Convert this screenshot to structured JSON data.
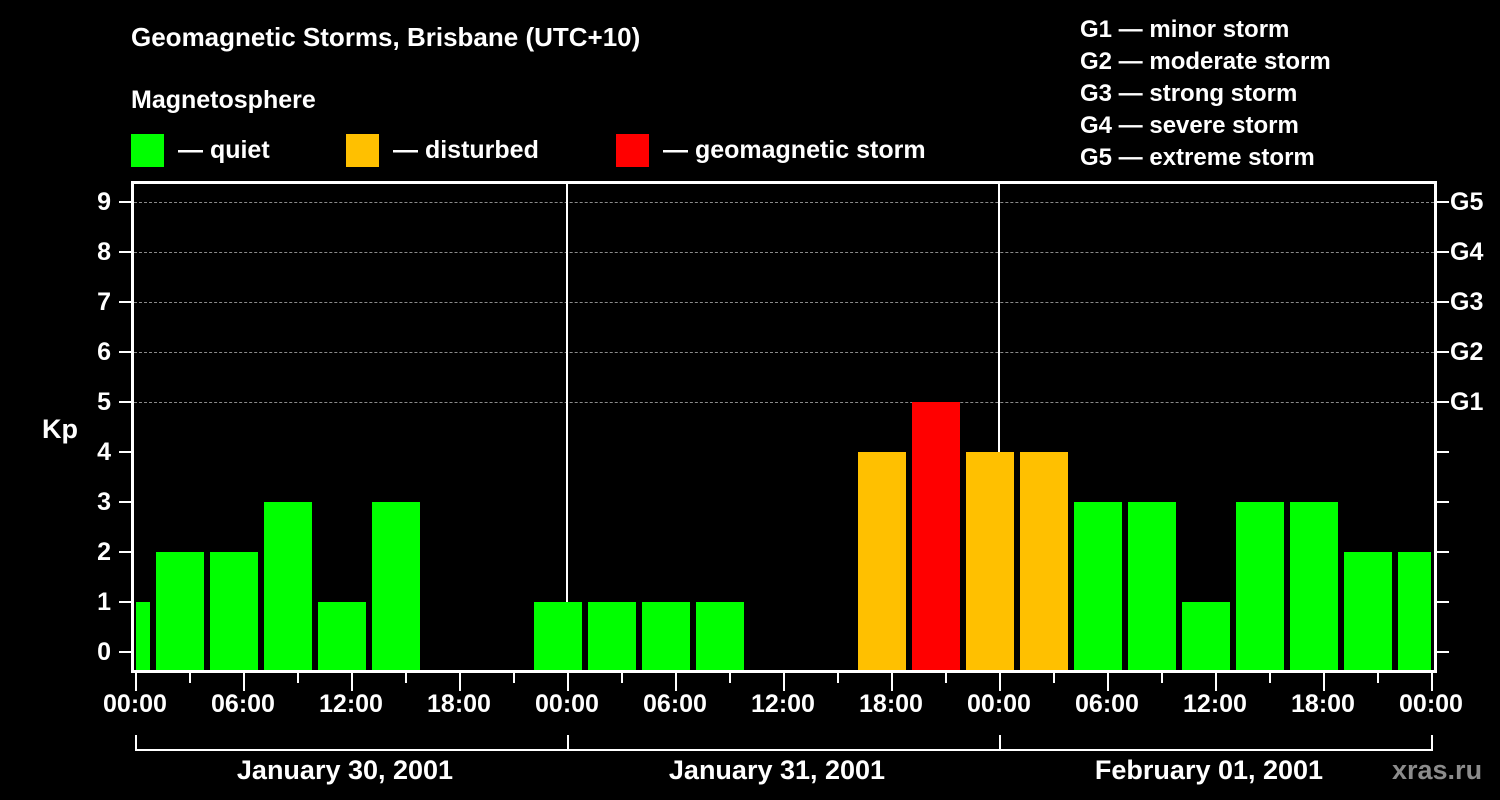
{
  "header": {
    "title": "Geomagnetic Storms, Brisbane (UTC+10)",
    "subtitle": "Magnetosphere"
  },
  "legend": {
    "items": [
      {
        "label": "— quiet",
        "color": "#00ff00"
      },
      {
        "label": "— disturbed",
        "color": "#ffc000"
      },
      {
        "label": "— geomagnetic storm",
        "color": "#ff0000"
      }
    ]
  },
  "storm_scale": [
    "G1 — minor storm",
    "G2 — moderate storm",
    "G3 — strong storm",
    "G4 — severe storm",
    "G5 — extreme storm"
  ],
  "axes": {
    "ylabel": "Kp",
    "yticks": [
      "0",
      "1",
      "2",
      "3",
      "4",
      "5",
      "6",
      "7",
      "8",
      "9"
    ],
    "right_ticks": [
      "G1",
      "G2",
      "G3",
      "G4",
      "G5"
    ],
    "xticks": [
      "00:00",
      "06:00",
      "12:00",
      "18:00",
      "00:00",
      "06:00",
      "12:00",
      "18:00",
      "00:00",
      "06:00",
      "12:00",
      "18:00",
      "00:00"
    ],
    "dates": [
      "January 30, 2001",
      "January 31, 2001",
      "February 01, 2001"
    ]
  },
  "watermark": "xras.ru",
  "chart_data": {
    "type": "bar",
    "title": "Geomagnetic Storms, Brisbane (UTC+10)",
    "subtitle": "Magnetosphere",
    "xlabel": "",
    "ylabel": "Kp",
    "ylim": [
      0,
      9
    ],
    "grid": true,
    "categories": [
      "Jan 30 00:00",
      "Jan 30 03:00",
      "Jan 30 06:00",
      "Jan 30 09:00",
      "Jan 30 12:00",
      "Jan 30 15:00",
      "Jan 30 18:00",
      "Jan 30 21:00",
      "Jan 31 00:00",
      "Jan 31 03:00",
      "Jan 31 06:00",
      "Jan 31 09:00",
      "Jan 31 12:00",
      "Jan 31 15:00",
      "Jan 31 18:00",
      "Jan 31 21:00",
      "Feb 01 00:00",
      "Feb 01 03:00",
      "Feb 01 06:00",
      "Feb 01 09:00",
      "Feb 01 12:00",
      "Feb 01 15:00",
      "Feb 01 18:00",
      "Feb 01 21:00",
      "Feb 02 00:00"
    ],
    "values": [
      1,
      2,
      2,
      3,
      1,
      3,
      0,
      0,
      1,
      1,
      1,
      1,
      0,
      0,
      4,
      5,
      4,
      4,
      3,
      3,
      1,
      3,
      3,
      2,
      2
    ],
    "colors_by_level": {
      "quiet": "#00ff00",
      "disturbed": "#ffc000",
      "storm": "#ff0000"
    },
    "legend": [
      "quiet",
      "disturbed",
      "geomagnetic storm"
    ],
    "legend_position": "top",
    "secondary_axis": {
      "labels": [
        "G1",
        "G2",
        "G3",
        "G4",
        "G5"
      ],
      "kp_values": [
        5,
        6,
        7,
        8,
        9
      ]
    }
  }
}
